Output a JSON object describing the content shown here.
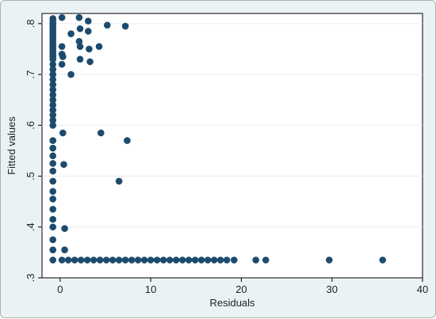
{
  "chart_data": {
    "type": "scatter",
    "title": "",
    "xlabel": "Residuals",
    "ylabel": "Fitted values",
    "xlim": [
      -2,
      40
    ],
    "ylim": [
      0.3,
      0.82
    ],
    "x_ticks": [
      0,
      10,
      20,
      30,
      40
    ],
    "x_tick_labels": [
      "0",
      "10",
      "20",
      "30",
      "40"
    ],
    "y_ticks": [
      0.3,
      0.4,
      0.5,
      0.6,
      0.7,
      0.8
    ],
    "y_tick_labels": [
      ".3",
      ".4",
      ".5",
      ".6",
      ".7",
      ".8"
    ],
    "grid": "horizontal",
    "legend": "none",
    "marker_color": "#1c4b6e",
    "points": [
      [
        -0.8,
        0.81
      ],
      [
        -0.8,
        0.805
      ],
      [
        -0.8,
        0.8
      ],
      [
        -0.8,
        0.795
      ],
      [
        -0.8,
        0.79
      ],
      [
        -0.8,
        0.785
      ],
      [
        -0.8,
        0.78
      ],
      [
        -0.8,
        0.775
      ],
      [
        -0.8,
        0.77
      ],
      [
        -0.8,
        0.765
      ],
      [
        -0.8,
        0.76
      ],
      [
        -0.8,
        0.755
      ],
      [
        -0.8,
        0.75
      ],
      [
        -0.8,
        0.745
      ],
      [
        -0.8,
        0.74
      ],
      [
        -0.8,
        0.735
      ],
      [
        -0.8,
        0.73
      ],
      [
        -0.8,
        0.72
      ],
      [
        -0.8,
        0.71
      ],
      [
        -0.8,
        0.7
      ],
      [
        -0.8,
        0.69
      ],
      [
        -0.8,
        0.68
      ],
      [
        -0.8,
        0.67
      ],
      [
        -0.8,
        0.66
      ],
      [
        -0.8,
        0.65
      ],
      [
        -0.8,
        0.64
      ],
      [
        -0.8,
        0.63
      ],
      [
        -0.8,
        0.62
      ],
      [
        -0.8,
        0.61
      ],
      [
        -0.8,
        0.6
      ],
      [
        -0.8,
        0.57
      ],
      [
        -0.8,
        0.555
      ],
      [
        -0.8,
        0.54
      ],
      [
        -0.8,
        0.525
      ],
      [
        -0.8,
        0.51
      ],
      [
        -0.8,
        0.49
      ],
      [
        -0.8,
        0.47
      ],
      [
        -0.8,
        0.455
      ],
      [
        -0.8,
        0.435
      ],
      [
        -0.8,
        0.415
      ],
      [
        -0.8,
        0.4
      ],
      [
        -0.8,
        0.375
      ],
      [
        -0.8,
        0.355
      ],
      [
        -0.8,
        0.335
      ],
      [
        0.2,
        0.812
      ],
      [
        0.2,
        0.755
      ],
      [
        0.2,
        0.74
      ],
      [
        0.3,
        0.735
      ],
      [
        0.2,
        0.72
      ],
      [
        0.3,
        0.585
      ],
      [
        0.4,
        0.523
      ],
      [
        0.5,
        0.397
      ],
      [
        0.5,
        0.355
      ],
      [
        1.2,
        0.78
      ],
      [
        1.2,
        0.7
      ],
      [
        2.1,
        0.812
      ],
      [
        2.2,
        0.79
      ],
      [
        2.1,
        0.765
      ],
      [
        2.2,
        0.755
      ],
      [
        2.2,
        0.73
      ],
      [
        3.1,
        0.805
      ],
      [
        3.1,
        0.785
      ],
      [
        3.2,
        0.75
      ],
      [
        3.3,
        0.725
      ],
      [
        4.3,
        0.755
      ],
      [
        5.2,
        0.797
      ],
      [
        7.2,
        0.795
      ],
      [
        4.5,
        0.585
      ],
      [
        7.4,
        0.57
      ],
      [
        6.5,
        0.49
      ],
      [
        0.2,
        0.335
      ],
      [
        0.9,
        0.335
      ],
      [
        1.6,
        0.335
      ],
      [
        2.3,
        0.335
      ],
      [
        3.0,
        0.335
      ],
      [
        3.7,
        0.335
      ],
      [
        4.4,
        0.335
      ],
      [
        5.1,
        0.335
      ],
      [
        5.8,
        0.335
      ],
      [
        6.5,
        0.335
      ],
      [
        7.2,
        0.335
      ],
      [
        7.9,
        0.335
      ],
      [
        8.6,
        0.335
      ],
      [
        9.3,
        0.335
      ],
      [
        10.0,
        0.335
      ],
      [
        10.7,
        0.335
      ],
      [
        11.4,
        0.335
      ],
      [
        12.1,
        0.335
      ],
      [
        12.8,
        0.335
      ],
      [
        13.5,
        0.335
      ],
      [
        14.2,
        0.335
      ],
      [
        14.9,
        0.335
      ],
      [
        15.6,
        0.335
      ],
      [
        16.3,
        0.335
      ],
      [
        17.0,
        0.335
      ],
      [
        17.7,
        0.335
      ],
      [
        18.4,
        0.335
      ],
      [
        19.2,
        0.335
      ],
      [
        21.6,
        0.335
      ],
      [
        22.7,
        0.335
      ],
      [
        29.7,
        0.335
      ],
      [
        35.6,
        0.335
      ]
    ]
  }
}
